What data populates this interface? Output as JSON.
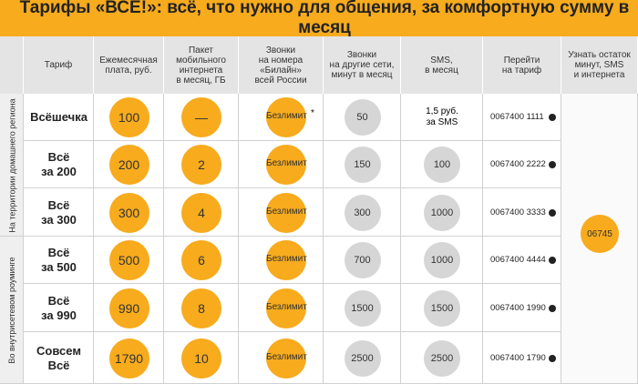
{
  "header": {
    "title": "Тарифы «ВСЁ!»: всё, что нужно для общения, за комфортную сумму в месяц"
  },
  "table": {
    "columns": [
      "Тариф",
      "Ежемесячная\nплата, руб.",
      "Пакет\nмобильного\nинтернета\nв месяц, ГБ",
      "Звонки\nна номера\n«Билайн»\nвсей России",
      "Звонки\nна другие сети,\nминут в месяц",
      "SMS,\nв месяц",
      "Перейти\nна тариф",
      "Узнать остаток\nминут, SMS\nи интернета"
    ],
    "side_labels": [
      "На территории домашнего региона",
      "Во внутрисетевом роуминге"
    ],
    "rows": [
      {
        "tariff": "Всёшечка",
        "fee": 100,
        "internet": "—",
        "beeline": "Безлимит",
        "note": "*",
        "other": 50,
        "sms": "1,5 руб.\nза SMS",
        "phone": "0067400 1111"
      },
      {
        "tariff": "Всё\nза 200",
        "fee": 200,
        "internet": 2,
        "beeline": "Безлимит",
        "other": 150,
        "sms": 100,
        "phone": "0067400 2222"
      },
      {
        "tariff": "Всё\nза 300",
        "fee": 300,
        "internet": 4,
        "beeline": "Безлимит",
        "other": 300,
        "sms": 1000,
        "phone": "0067400 3333"
      },
      {
        "tariff": "Всё\nза 500",
        "fee": 500,
        "internet": 6,
        "beeline": "Безлимит",
        "other": 700,
        "sms": 1000,
        "phone": "0067400 4444"
      },
      {
        "tariff": "Всё\nза 990",
        "fee": 990,
        "internet": 8,
        "beeline": "Безлимит",
        "other": 1500,
        "sms": 1500,
        "phone": "0067400 1990"
      },
      {
        "tariff": "Совсем\nВсё",
        "fee": 1790,
        "internet": 10,
        "beeline": "Безлимит",
        "other": 2500,
        "sms": 2500,
        "phone": "0067400 1790"
      }
    ],
    "check_code": "06745"
  }
}
